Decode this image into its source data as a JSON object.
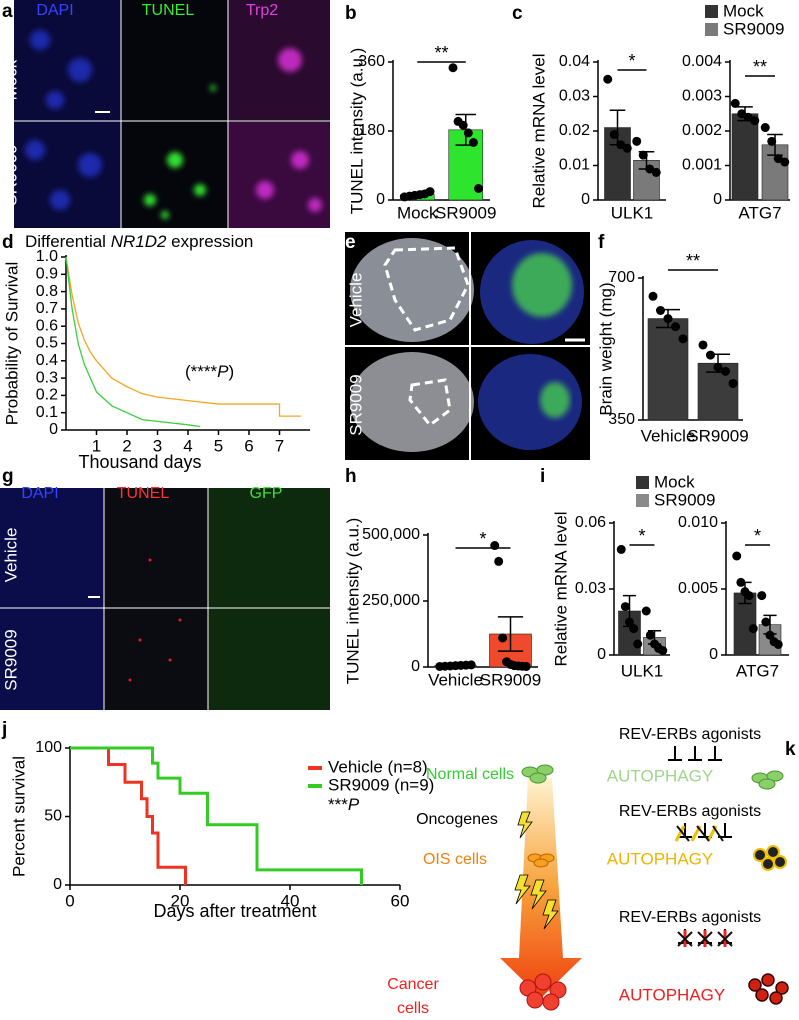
{
  "panels": {
    "a": {
      "label": "a",
      "channels": [
        "DAPI",
        "TUNEL",
        "Trp2"
      ],
      "rows": [
        "Mock",
        "SR9009"
      ]
    },
    "e": {
      "label": "e",
      "rows": [
        "Vehicle",
        "SR9009"
      ]
    },
    "g": {
      "label": "g",
      "channels": [
        "DAPI",
        "TUNEL",
        "GFP"
      ],
      "rows": [
        "Vehicle",
        "SR9009"
      ]
    }
  },
  "diagram": {
    "label": "k",
    "normal": "Normal cells",
    "ois": "OIS cells",
    "cancer": [
      "Cancer",
      "cells"
    ],
    "oncogenes": "Oncogenes",
    "agonists": [
      "REV-ERBs agonists",
      "REV-ERBs agonists",
      "REV-ERBs agonists"
    ],
    "autophagy": [
      "AUTOPHAGY",
      "AUTOPHAGY",
      "AUTOPHAGY"
    ]
  },
  "chart_data": [
    {
      "type": "bar",
      "panel_label": "b",
      "ylabel": "TUNEL intensity (a.u.)",
      "categories": [
        "Mock",
        "SR9009"
      ],
      "values": [
        14,
        183
      ],
      "errors": [
        4,
        40
      ],
      "points": [
        [
          8,
          10,
          12,
          14,
          16,
          22
        ],
        [
          345,
          205,
          195,
          175,
          150,
          30
        ]
      ],
      "color": "#2ee52e",
      "ylim": [
        0,
        360
      ],
      "yticks": [
        0,
        180,
        360
      ],
      "annotation": "**"
    },
    {
      "type": "bar",
      "panel_label": "c",
      "ylabel": "Relative mRNA level",
      "categories": [
        "ULK1"
      ],
      "series": [
        {
          "name": "Mock",
          "color": "#333333",
          "values": [
            0.021
          ],
          "errors": [
            0.005
          ],
          "points": [
            [
              0.035,
              0.019,
              0.016,
              0.015
            ]
          ]
        },
        {
          "name": "SR9009",
          "color": "#7a7a7a",
          "values": [
            0.0115
          ],
          "errors": [
            0.0025
          ],
          "points": [
            [
              0.017,
              0.013,
              0.009,
              0.008
            ]
          ]
        }
      ],
      "ylim": [
        0,
        0.04
      ],
      "yticks": [
        0,
        0.01,
        0.02,
        0.03,
        0.04
      ],
      "annotation": "*"
    },
    {
      "type": "bar",
      "categories": [
        "ATG7"
      ],
      "series": [
        {
          "color": "#333333",
          "values": [
            0.0025
          ],
          "errors": [
            0.0002
          ],
          "points": [
            [
              0.0028,
              0.0025,
              0.0024,
              0.0023
            ]
          ]
        },
        {
          "color": "#7a7a7a",
          "values": [
            0.0016
          ],
          "errors": [
            0.0003
          ],
          "points": [
            [
              0.0021,
              0.0017,
              0.0012,
              0.0011
            ]
          ]
        }
      ],
      "ylim": [
        0,
        0.004
      ],
      "yticks": [
        0,
        0.001,
        0.002,
        0.003,
        0.004
      ],
      "annotation": "**"
    },
    {
      "type": "line",
      "panel_label": "d",
      "title": [
        "Differential ",
        "NR1D2",
        " expression"
      ],
      "annotation": [
        "(****",
        "P",
        ")"
      ],
      "xlabel": "Thousand days",
      "ylabel": "Probability of Survival",
      "series": [
        {
          "color": "#f5a623",
          "x": [
            0,
            0.2,
            0.4,
            0.6,
            0.8,
            1,
            1.5,
            2,
            2.5,
            3,
            4,
            5,
            7,
            7,
            7.7
          ],
          "values": [
            1,
            0.78,
            0.62,
            0.52,
            0.45,
            0.4,
            0.3,
            0.25,
            0.21,
            0.19,
            0.17,
            0.15,
            0.15,
            0.08,
            0.08
          ]
        },
        {
          "color": "#3ccf3c",
          "x": [
            0,
            0.2,
            0.4,
            0.6,
            0.8,
            1,
            1.5,
            2,
            2.5,
            3,
            4,
            4.4
          ],
          "values": [
            1,
            0.7,
            0.5,
            0.38,
            0.3,
            0.22,
            0.14,
            0.1,
            0.06,
            0.05,
            0.03,
            0.02
          ]
        }
      ],
      "xlim": [
        0,
        8
      ],
      "xticks": [
        1,
        2,
        3,
        4,
        5,
        6,
        7
      ],
      "ylim": [
        0,
        1
      ],
      "yticks": [
        0,
        0.1,
        0.2,
        0.3,
        0.4,
        0.5,
        0.6,
        0.7,
        0.8,
        0.9,
        {
          "value": 1,
          "label": "1.0"
        }
      ]
    },
    {
      "type": "bar",
      "panel_label": "f",
      "ylabel": "Brain weight (mg)",
      "categories": [
        "Vehicle",
        "SR9009"
      ],
      "values": [
        600,
        490
      ],
      "errors": [
        22,
        22
      ],
      "points": [
        [
          655,
          620,
          600,
          580,
          550
        ],
        [
          535,
          510,
          480,
          470,
          440
        ]
      ],
      "color": "#3c3c3c",
      "ylim": [
        350,
        700
      ],
      "yticks": [
        350,
        700
      ],
      "annotation": "**"
    },
    {
      "type": "bar",
      "panel_label": "h",
      "ylabel": "TUNEL intensity (a.u.)",
      "categories": [
        "Vehicle",
        "SR9009"
      ],
      "values": [
        5000,
        125000
      ],
      "errors": [
        3000,
        65000
      ],
      "points": [
        [
          2000,
          3000,
          4000,
          5000,
          6000,
          7000,
          8000
        ],
        [
          460000,
          400000,
          110000,
          20000,
          10000,
          5000,
          4000,
          3000,
          2000
        ]
      ],
      "color": "#f04a2e",
      "ylim": [
        0,
        500000
      ],
      "yticks": [
        0,
        {
          "value": 250000,
          "label": "250,000"
        },
        {
          "value": 500000,
          "label": "500,000"
        }
      ],
      "annotation": "*"
    },
    {
      "type": "bar",
      "panel_label": "i",
      "ylabel": "Relative mRNA level",
      "categories": [
        "ULK1"
      ],
      "series": [
        {
          "name": "Mock",
          "color": "#333333",
          "values": [
            0.02
          ],
          "errors": [
            0.007
          ],
          "points": [
            [
              0.048,
              0.022,
              0.015,
              0.012,
              0.005
            ]
          ]
        },
        {
          "name": "SR9009",
          "color": "#8a8a8a",
          "values": [
            0.008
          ],
          "errors": [
            0.003
          ],
          "points": [
            [
              0.02,
              0.009,
              0.005,
              0.003,
              0.002
            ]
          ]
        }
      ],
      "ylim": [
        0,
        0.06
      ],
      "yticks": [
        0,
        0.03,
        0.06
      ],
      "annotation": "*"
    },
    {
      "type": "bar",
      "categories": [
        "ATG7"
      ],
      "series": [
        {
          "color": "#333333",
          "values": [
            0.0047
          ],
          "errors": [
            0.0008
          ],
          "points": [
            [
              0.0075,
              0.0055,
              0.0048,
              0.0045,
              0.002
            ]
          ]
        },
        {
          "color": "#8a8a8a",
          "values": [
            0.0023
          ],
          "errors": [
            0.0007
          ],
          "points": [
            [
              0.0045,
              0.0025,
              0.0015,
              0.001,
              0.0008
            ]
          ]
        }
      ],
      "ylim": [
        0,
        0.01
      ],
      "yticks": [
        0,
        0.005,
        {
          "value": 0.01,
          "label": "0.010"
        }
      ],
      "annotation": "*"
    },
    {
      "type": "line",
      "panel_label": "j",
      "xlabel": "Days after treatment",
      "ylabel": "Percent survival",
      "annotation": [
        "***",
        "P"
      ],
      "series": [
        {
          "name": "Vehicle (n=8)",
          "color": "#ee3322",
          "x": [
            0,
            7,
            7,
            10,
            10,
            13,
            13,
            14,
            14,
            15,
            15,
            16,
            16,
            21,
            21
          ],
          "values": [
            100,
            100,
            88,
            88,
            75,
            75,
            63,
            63,
            50,
            50,
            38,
            38,
            13,
            13,
            0
          ]
        },
        {
          "name": "SR9009 (n=9)",
          "color": "#33cc22",
          "x": [
            0,
            15,
            15,
            16,
            16,
            20,
            20,
            25,
            25,
            34,
            34,
            53,
            53
          ],
          "values": [
            100,
            100,
            89,
            89,
            78,
            78,
            67,
            67,
            44,
            44,
            11,
            11,
            0
          ]
        }
      ],
      "xlim": [
        0,
        60
      ],
      "xticks": [
        0,
        20,
        40,
        60
      ],
      "ylim": [
        0,
        100
      ],
      "yticks": [
        0,
        50,
        100
      ]
    }
  ]
}
